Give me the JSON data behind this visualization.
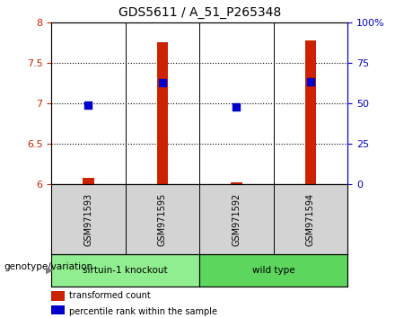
{
  "title": "GDS5611 / A_51_P265348",
  "samples": [
    "GSM971593",
    "GSM971595",
    "GSM971592",
    "GSM971594"
  ],
  "groups": [
    "sirtuin-1 knockout",
    "sirtuin-1 knockout",
    "wild type",
    "wild type"
  ],
  "group_colors": {
    "sirtuin-1 knockout": "#90EE90",
    "wild type": "#3CB371"
  },
  "red_values": [
    6.08,
    7.75,
    6.03,
    7.78
  ],
  "blue_values": [
    6.98,
    7.26,
    6.96,
    7.27
  ],
  "ylim": [
    6.0,
    8.0
  ],
  "yticks": [
    6.0,
    6.5,
    7.0,
    7.5,
    8.0
  ],
  "ytick_labels_left": [
    "6",
    "6.5",
    "7",
    "7.5",
    "8"
  ],
  "ytick_labels_right": [
    "0",
    "25",
    "50",
    "75",
    "100%"
  ],
  "left_axis_color": "#CC2200",
  "right_axis_color": "#0000CC",
  "bar_color": "#CC2200",
  "dot_color": "#0000CC",
  "bar_width": 0.08,
  "dot_size": 40,
  "group_label": "genotype/variation",
  "legend_items": [
    {
      "color": "#CC2200",
      "label": "transformed count"
    },
    {
      "color": "#0000CC",
      "label": "percentile rank within the sample"
    }
  ],
  "sample_bg_color": "#D3D3D3",
  "plot_bg_color": "#FFFFFF"
}
